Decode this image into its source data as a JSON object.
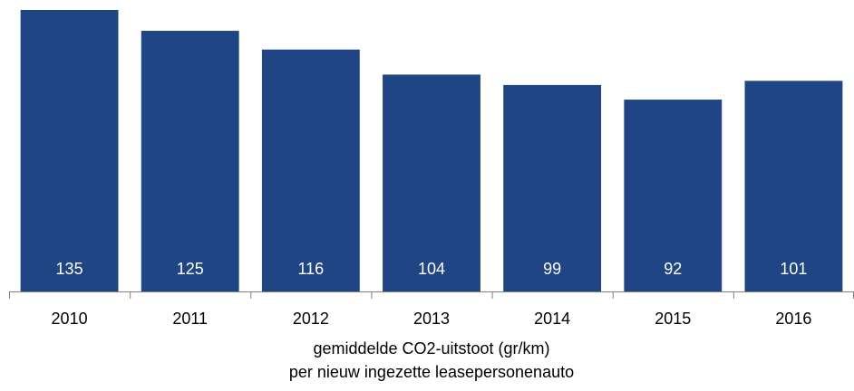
{
  "chart_data": {
    "type": "bar",
    "categories": [
      "2010",
      "2011",
      "2012",
      "2013",
      "2014",
      "2015",
      "2016"
    ],
    "values": [
      135,
      125,
      116,
      104,
      99,
      92,
      101
    ],
    "color": "#1f4584",
    "ylim": [
      0,
      135
    ],
    "x_label": [
      "gemiddelde CO2-uitstoot (gr/km)",
      "per nieuw ingezette leasepersonenauto"
    ]
  }
}
